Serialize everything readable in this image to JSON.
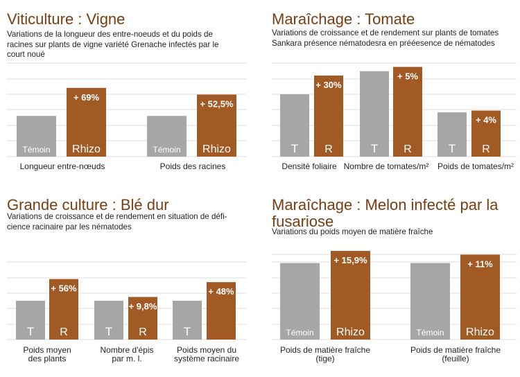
{
  "colors": {
    "temoin": "#a6a6a6",
    "rhizo": "#a25a25",
    "grid": "#dcdcdc",
    "title": "#7a3d12",
    "pct_text": "#ffffff",
    "bar_text": "#ffffff"
  },
  "panels": [
    {
      "title": "Viticulture : Vigne",
      "subtitle_lines": [
        "Variations de la longueur des entre-noeuds et du poids de",
        "racines sur plants de vigne variété Grenache infectés par le",
        "court noué"
      ]
    },
    {
      "title": "Maraîchage : Tomate",
      "subtitle_lines": [
        "Variations de croissance et de rendement sur plants de tomates",
        "Sankara présence nématodesra en prééesence de nématodes"
      ]
    },
    {
      "title": "Grande culture : Blé dur",
      "subtitle_lines": [
        "Variations de croissance et de rendement en situation de défi-",
        "cience racinaire par les nématodes"
      ]
    },
    {
      "title_lines": [
        "Maraîchage : Melon infecté par la",
        "fusariose"
      ],
      "subtitle_lines": [
        "Variations du poids moyen de matière fraîche"
      ]
    }
  ],
  "chart_data": [
    {
      "type": "bar",
      "categories": [
        "Longueur entre-nœuds",
        "Poids des racines"
      ],
      "series": [
        {
          "name": "Témoin",
          "values": [
            100,
            100
          ]
        },
        {
          "name": "Rhizo",
          "values": [
            169,
            152.5
          ]
        }
      ],
      "bar_labels": {
        "Témoin": [
          "Témoin",
          "Témoin"
        ],
        "Rhizo": [
          "Rhizo",
          "Rhizo"
        ]
      },
      "annotations": [
        "+ 69%",
        "+ 52,5%"
      ],
      "ylim": [
        0,
        230
      ],
      "grid": true
    },
    {
      "type": "bar",
      "categories": [
        "Densité foliaire",
        "Nombre de tomates/m²",
        "Poids de tomates/m²"
      ],
      "series": [
        {
          "name": "T",
          "values": [
            100,
            100,
            100
          ]
        },
        {
          "name": "R",
          "values": [
            130,
            105,
            104
          ]
        }
      ],
      "bar_labels": {
        "T": [
          "T",
          "T",
          "T"
        ],
        "R": [
          "R",
          "R",
          "R"
        ]
      },
      "annotations": [
        "+ 30%",
        "+ 5%",
        "+ 4%"
      ],
      "raw_values_for_t": [
        100,
        137,
        71
      ],
      "ylim": [
        0,
        150
      ],
      "grid": true
    },
    {
      "type": "bar",
      "categories": [
        "Poids moyen\ndes plants",
        "Nombre d'épis\npar m. l.",
        "Poids moyen du\nsystème racinaire"
      ],
      "series": [
        {
          "name": "T",
          "values": [
            100,
            100,
            100
          ]
        },
        {
          "name": "R",
          "values": [
            156,
            109.8,
            148
          ]
        }
      ],
      "bar_labels": {
        "T": [
          "T",
          "T",
          "T"
        ],
        "R": [
          "R",
          "R",
          ""
        ]
      },
      "annotations": [
        "+ 56%",
        "+ 9,8%",
        "+ 48%"
      ],
      "ylim": [
        0,
        200
      ],
      "grid": true
    },
    {
      "type": "bar",
      "categories": [
        "Poids de matière fraîche\n(tige)",
        "Poids de matière fraîche\n(feuille)"
      ],
      "series": [
        {
          "name": "Témoin",
          "values": [
            100,
            100
          ]
        },
        {
          "name": "Rhizo",
          "values": [
            115.9,
            111
          ]
        }
      ],
      "bar_labels": {
        "Témoin": [
          "Témoin",
          "Témoin"
        ],
        "Rhizo": [
          "Rhizo",
          "Rhizo"
        ]
      },
      "annotations": [
        "+ 15,9%",
        "+ 11%"
      ],
      "ylim": [
        0,
        125
      ],
      "grid": true
    }
  ]
}
